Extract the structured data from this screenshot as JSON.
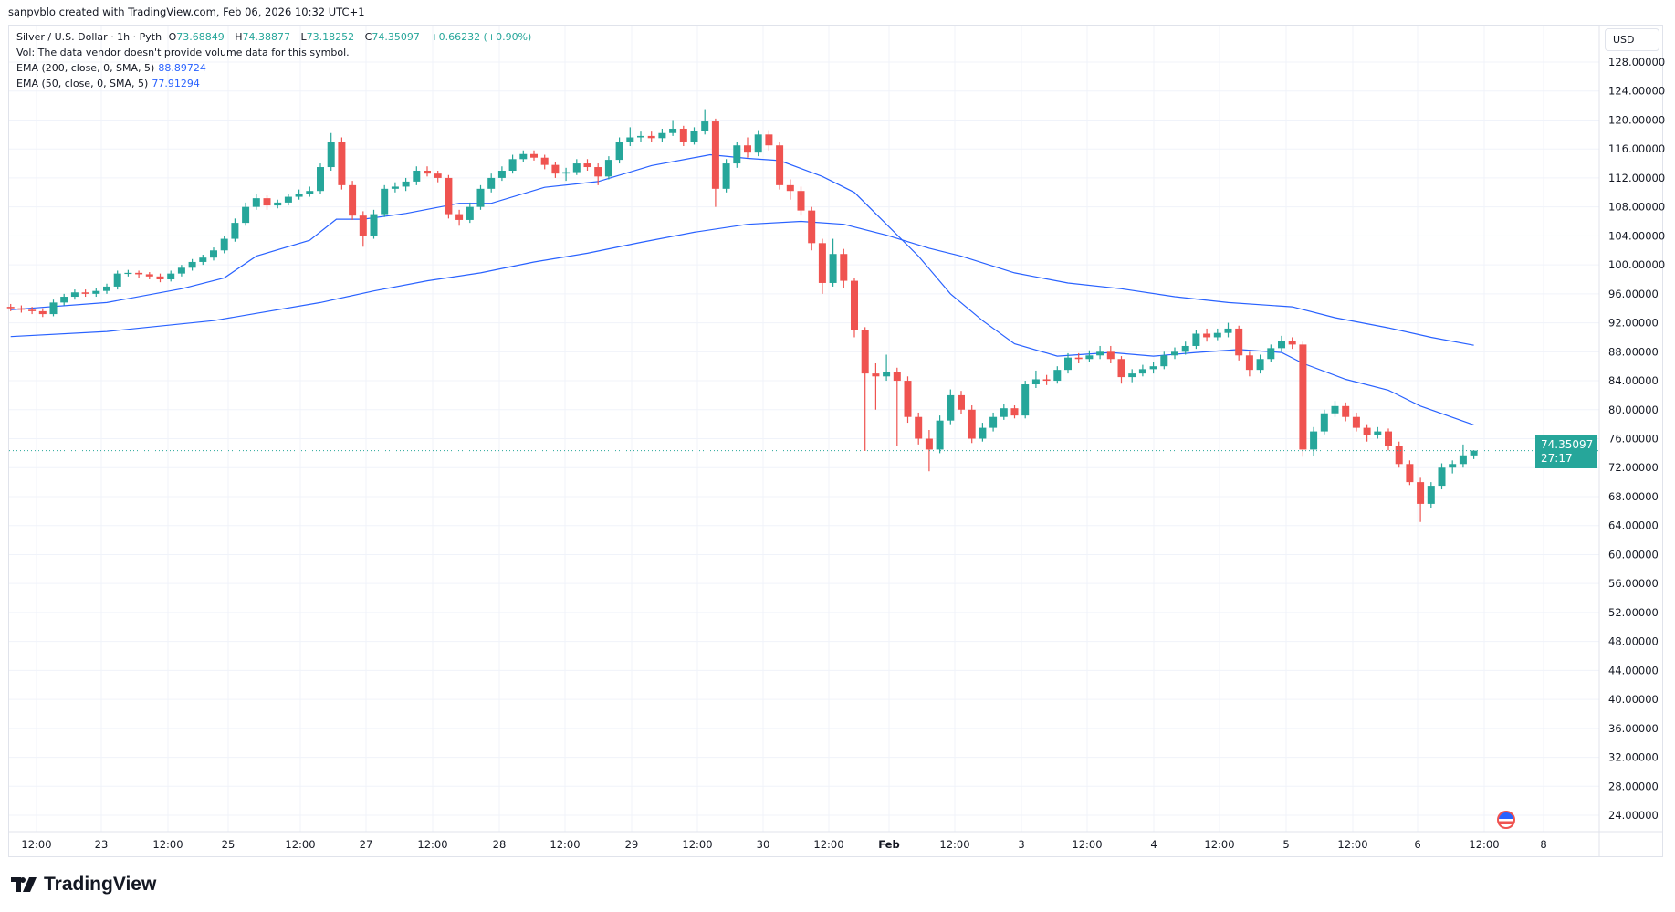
{
  "credit": "sanpvblo created with TradingView.com, Feb 06, 2026 10:32 UTC+1",
  "legend": {
    "symbol": "Silver / U.S. Dollar · 1h · Pyth",
    "o_label": "O",
    "o": "73.68849",
    "h_label": "H",
    "h": "74.38877",
    "l_label": "L",
    "l": "73.18252",
    "c_label": "C",
    "c": "74.35097",
    "change": "+0.66232 (+0.90%)",
    "vol": "Vol: The data vendor doesn't provide volume data for this symbol.",
    "ema200_label": "EMA (200, close, 0, SMA, 5)",
    "ema200_value": "88.89724",
    "ema50_label": "EMA (50, close, 0, SMA, 5)",
    "ema50_value": "77.91294"
  },
  "currency": "USD",
  "last_price": {
    "value": "74.35097",
    "countdown": "27:17"
  },
  "brand": "TradingView",
  "event_icon": "us-flag-icon",
  "colors": {
    "up": "#26a69a",
    "down": "#ef5350",
    "ema": "#2962ff",
    "grid": "#f0f3fa"
  },
  "chart_data": {
    "type": "candlestick",
    "timeframe": "1h",
    "ylim": [
      24,
      128
    ],
    "grid": true,
    "y_ticks": [
      "128.00000",
      "124.00000",
      "120.00000",
      "116.00000",
      "112.00000",
      "108.00000",
      "104.00000",
      "100.00000",
      "96.00000",
      "92.00000",
      "88.00000",
      "84.00000",
      "80.00000",
      "76.00000",
      "72.00000",
      "68.00000",
      "64.00000",
      "60.00000",
      "56.00000",
      "52.00000",
      "48.00000",
      "44.00000",
      "40.00000",
      "36.00000",
      "32.00000",
      "28.00000",
      "24.00000"
    ],
    "x_ticks": [
      "12:00",
      "23",
      "12:00",
      "25",
      "12:00",
      "27",
      "12:00",
      "28",
      "12:00",
      "29",
      "12:00",
      "30",
      "12:00",
      "Feb",
      "12:00",
      "3",
      "12:00",
      "4",
      "12:00",
      "5",
      "12:00",
      "6",
      "12:00",
      "8"
    ],
    "candles_ohlc": [
      [
        94.2,
        94.6,
        93.6,
        94.0
      ],
      [
        94.0,
        94.4,
        93.4,
        93.8
      ],
      [
        93.8,
        94.2,
        93.2,
        93.6
      ],
      [
        93.6,
        94.0,
        92.8,
        93.2
      ],
      [
        93.2,
        95.2,
        92.9,
        94.8
      ],
      [
        94.8,
        96.0,
        94.4,
        95.6
      ],
      [
        95.6,
        96.6,
        95.2,
        96.2
      ],
      [
        96.2,
        96.6,
        95.6,
        96.0
      ],
      [
        96.0,
        96.8,
        95.6,
        96.4
      ],
      [
        96.4,
        97.4,
        96.0,
        97.0
      ],
      [
        97.0,
        99.2,
        96.6,
        98.8
      ],
      [
        98.8,
        99.3,
        98.4,
        98.9
      ],
      [
        98.9,
        99.2,
        98.2,
        98.7
      ],
      [
        98.7,
        99.0,
        98.0,
        98.4
      ],
      [
        98.4,
        98.8,
        97.6,
        98.0
      ],
      [
        98.0,
        99.2,
        97.7,
        98.8
      ],
      [
        98.8,
        100.0,
        98.4,
        99.6
      ],
      [
        99.6,
        100.8,
        99.2,
        100.4
      ],
      [
        100.4,
        101.4,
        100.0,
        101.0
      ],
      [
        101.0,
        102.4,
        100.6,
        102.0
      ],
      [
        102.0,
        104.0,
        101.6,
        103.6
      ],
      [
        103.6,
        106.4,
        103.2,
        105.8
      ],
      [
        105.8,
        108.6,
        105.4,
        108.0
      ],
      [
        108.0,
        109.8,
        107.6,
        109.2
      ],
      [
        109.2,
        109.6,
        107.6,
        108.2
      ],
      [
        108.2,
        109.0,
        107.8,
        108.6
      ],
      [
        108.6,
        109.8,
        108.2,
        109.4
      ],
      [
        109.4,
        110.4,
        109.0,
        109.8
      ],
      [
        109.8,
        110.8,
        109.4,
        110.2
      ],
      [
        110.2,
        114.0,
        109.8,
        113.5
      ],
      [
        113.5,
        118.2,
        113.0,
        117.0
      ],
      [
        117.0,
        117.6,
        110.4,
        111.0
      ],
      [
        111.0,
        111.6,
        106.2,
        106.8
      ],
      [
        106.8,
        107.4,
        102.5,
        104.0
      ],
      [
        104.0,
        107.6,
        103.6,
        107.0
      ],
      [
        107.0,
        111.0,
        106.6,
        110.5
      ],
      [
        110.5,
        111.4,
        110.0,
        110.8
      ],
      [
        110.8,
        112.0,
        110.2,
        111.5
      ],
      [
        111.5,
        113.6,
        111.0,
        113.0
      ],
      [
        113.0,
        113.6,
        112.2,
        112.6
      ],
      [
        112.6,
        113.0,
        111.4,
        112.0
      ],
      [
        112.0,
        112.4,
        106.4,
        107.0
      ],
      [
        107.0,
        107.6,
        105.4,
        106.2
      ],
      [
        106.2,
        108.6,
        105.8,
        108.0
      ],
      [
        108.0,
        111.0,
        107.6,
        110.5
      ],
      [
        110.5,
        112.6,
        110.0,
        112.0
      ],
      [
        112.0,
        113.6,
        111.6,
        113.0
      ],
      [
        113.0,
        115.2,
        112.6,
        114.6
      ],
      [
        114.6,
        115.8,
        114.2,
        115.3
      ],
      [
        115.3,
        115.8,
        114.4,
        114.8
      ],
      [
        114.8,
        115.2,
        113.2,
        113.8
      ],
      [
        113.8,
        114.2,
        112.0,
        112.6
      ],
      [
        112.6,
        113.4,
        111.6,
        112.8
      ],
      [
        112.8,
        114.6,
        112.4,
        114.0
      ],
      [
        114.0,
        114.6,
        113.0,
        113.5
      ],
      [
        113.5,
        114.0,
        111.0,
        112.2
      ],
      [
        112.2,
        115.0,
        111.8,
        114.5
      ],
      [
        114.5,
        117.6,
        114.0,
        117.0
      ],
      [
        117.0,
        119.0,
        116.4,
        117.6
      ],
      [
        117.6,
        118.4,
        117.0,
        117.8
      ],
      [
        117.8,
        118.4,
        117.0,
        117.5
      ],
      [
        117.5,
        118.8,
        117.0,
        118.2
      ],
      [
        118.2,
        120.0,
        117.8,
        118.8
      ],
      [
        118.8,
        119.2,
        116.4,
        117.0
      ],
      [
        117.0,
        119.0,
        116.6,
        118.5
      ],
      [
        118.5,
        121.5,
        118.0,
        119.8
      ],
      [
        119.8,
        120.2,
        108.0,
        110.5
      ],
      [
        110.5,
        114.6,
        110.0,
        114.0
      ],
      [
        114.0,
        117.0,
        113.4,
        116.5
      ],
      [
        116.5,
        117.6,
        114.8,
        115.5
      ],
      [
        115.5,
        118.6,
        115.0,
        118.0
      ],
      [
        118.0,
        118.6,
        115.8,
        116.5
      ],
      [
        116.5,
        117.0,
        110.4,
        111.0
      ],
      [
        111.0,
        111.8,
        109.0,
        110.2
      ],
      [
        110.2,
        110.8,
        106.8,
        107.5
      ],
      [
        107.5,
        108.0,
        102.0,
        103.0
      ],
      [
        103.0,
        103.6,
        96.0,
        97.5
      ],
      [
        97.5,
        103.6,
        97.0,
        101.5
      ],
      [
        101.5,
        102.2,
        96.8,
        97.8
      ],
      [
        97.8,
        98.2,
        90.0,
        91.0
      ],
      [
        91.0,
        91.4,
        74.3,
        85.0
      ],
      [
        85.0,
        86.4,
        80.0,
        84.6
      ],
      [
        84.6,
        87.6,
        84.0,
        85.2
      ],
      [
        85.2,
        85.8,
        75.0,
        84.0
      ],
      [
        84.0,
        84.6,
        78.2,
        79.0
      ],
      [
        79.0,
        79.6,
        75.2,
        76.0
      ],
      [
        76.0,
        77.2,
        71.5,
        74.5
      ],
      [
        74.5,
        79.2,
        74.0,
        78.5
      ],
      [
        78.5,
        82.8,
        78.0,
        82.0
      ],
      [
        82.0,
        82.6,
        79.4,
        80.0
      ],
      [
        80.0,
        80.6,
        75.4,
        76.0
      ],
      [
        76.0,
        78.2,
        75.6,
        77.5
      ],
      [
        77.5,
        79.6,
        77.0,
        79.0
      ],
      [
        79.0,
        80.8,
        78.6,
        80.2
      ],
      [
        80.2,
        80.6,
        78.8,
        79.2
      ],
      [
        79.2,
        84.0,
        78.8,
        83.5
      ],
      [
        83.5,
        85.4,
        83.0,
        84.2
      ],
      [
        84.2,
        84.8,
        83.4,
        84.0
      ],
      [
        84.0,
        86.0,
        83.6,
        85.5
      ],
      [
        85.5,
        87.8,
        85.0,
        87.2
      ],
      [
        87.2,
        87.8,
        86.4,
        87.0
      ],
      [
        87.0,
        88.2,
        86.6,
        87.5
      ],
      [
        87.5,
        88.8,
        87.0,
        88.0
      ],
      [
        88.0,
        88.8,
        86.4,
        87.0
      ],
      [
        87.0,
        87.4,
        83.6,
        84.5
      ],
      [
        84.5,
        85.6,
        83.8,
        85.0
      ],
      [
        85.0,
        86.2,
        84.6,
        85.6
      ],
      [
        85.6,
        86.6,
        85.0,
        86.0
      ],
      [
        86.0,
        88.0,
        85.6,
        87.5
      ],
      [
        87.5,
        88.6,
        87.0,
        88.0
      ],
      [
        88.0,
        89.4,
        87.6,
        88.8
      ],
      [
        88.8,
        91.0,
        88.4,
        90.5
      ],
      [
        90.5,
        91.2,
        89.4,
        90.0
      ],
      [
        90.0,
        91.2,
        89.6,
        90.6
      ],
      [
        90.6,
        92.0,
        90.0,
        91.2
      ],
      [
        91.2,
        91.6,
        86.8,
        87.5
      ],
      [
        87.5,
        88.0,
        84.6,
        85.5
      ],
      [
        85.5,
        87.6,
        85.0,
        87.0
      ],
      [
        87.0,
        89.0,
        86.6,
        88.5
      ],
      [
        88.5,
        90.2,
        88.0,
        89.5
      ],
      [
        89.5,
        90.0,
        88.4,
        89.0
      ],
      [
        89.0,
        89.4,
        73.5,
        74.5
      ],
      [
        74.5,
        77.6,
        73.6,
        77.0
      ],
      [
        77.0,
        80.0,
        76.6,
        79.5
      ],
      [
        79.5,
        81.2,
        79.0,
        80.5
      ],
      [
        80.5,
        81.0,
        78.4,
        79.0
      ],
      [
        79.0,
        79.6,
        77.0,
        77.5
      ],
      [
        77.5,
        78.0,
        75.6,
        76.5
      ],
      [
        76.5,
        77.6,
        76.0,
        77.0
      ],
      [
        77.0,
        77.4,
        74.4,
        75.0
      ],
      [
        75.0,
        75.6,
        72.0,
        72.5
      ],
      [
        72.5,
        73.0,
        69.6,
        70.0
      ],
      [
        70.0,
        70.6,
        64.5,
        67.0
      ],
      [
        67.0,
        70.0,
        66.4,
        69.5
      ],
      [
        69.5,
        72.6,
        69.0,
        72.0
      ],
      [
        72.0,
        73.0,
        71.2,
        72.5
      ],
      [
        72.5,
        75.2,
        72.0,
        73.7
      ],
      [
        73.68849,
        74.38877,
        73.18252,
        74.35097
      ]
    ],
    "series": [
      {
        "name": "EMA (50, close, 0, SMA, 5)",
        "candle_index_value": [
          [
            0,
            93.8
          ],
          [
            9,
            94.8
          ],
          [
            16,
            96.7
          ],
          [
            20,
            98.2
          ],
          [
            23,
            101.2
          ],
          [
            28,
            103.4
          ],
          [
            30.5,
            106.3
          ],
          [
            33,
            106.3
          ],
          [
            37,
            107.1
          ],
          [
            42,
            108.5
          ],
          [
            45,
            108.5
          ],
          [
            50,
            110.7
          ],
          [
            55,
            111.5
          ],
          [
            60,
            113.7
          ],
          [
            65.5,
            115.2
          ],
          [
            69,
            114.7
          ],
          [
            72,
            114.4
          ],
          [
            76,
            112.2
          ],
          [
            79,
            110.0
          ],
          [
            82,
            105.6
          ],
          [
            85,
            101.2
          ],
          [
            88,
            96.0
          ],
          [
            91,
            92.3
          ],
          [
            94,
            89.1
          ],
          [
            98,
            87.4
          ],
          [
            103,
            87.9
          ],
          [
            107,
            87.4
          ],
          [
            111,
            87.9
          ],
          [
            115,
            88.3
          ],
          [
            119,
            87.9
          ],
          [
            121,
            86.4
          ],
          [
            125,
            84.2
          ],
          [
            129,
            82.7
          ],
          [
            132,
            80.5
          ],
          [
            137,
            77.91
          ]
        ]
      },
      {
        "name": "EMA (200, close, 0, SMA, 5)",
        "candle_index_value": [
          [
            0,
            90.1
          ],
          [
            9,
            90.8
          ],
          [
            19,
            92.3
          ],
          [
            29,
            94.8
          ],
          [
            34,
            96.4
          ],
          [
            39,
            97.8
          ],
          [
            44,
            98.9
          ],
          [
            49,
            100.4
          ],
          [
            54,
            101.6
          ],
          [
            59,
            103.1
          ],
          [
            64,
            104.5
          ],
          [
            69,
            105.6
          ],
          [
            74,
            106.0
          ],
          [
            78,
            105.6
          ],
          [
            82,
            104.1
          ],
          [
            86,
            102.3
          ],
          [
            89,
            101.2
          ],
          [
            94,
            98.9
          ],
          [
            99,
            97.5
          ],
          [
            104,
            96.7
          ],
          [
            109,
            95.6
          ],
          [
            114,
            94.8
          ],
          [
            120,
            94.2
          ],
          [
            124,
            92.7
          ],
          [
            129,
            91.3
          ],
          [
            133,
            90.0
          ],
          [
            137,
            88.9
          ]
        ]
      }
    ]
  }
}
